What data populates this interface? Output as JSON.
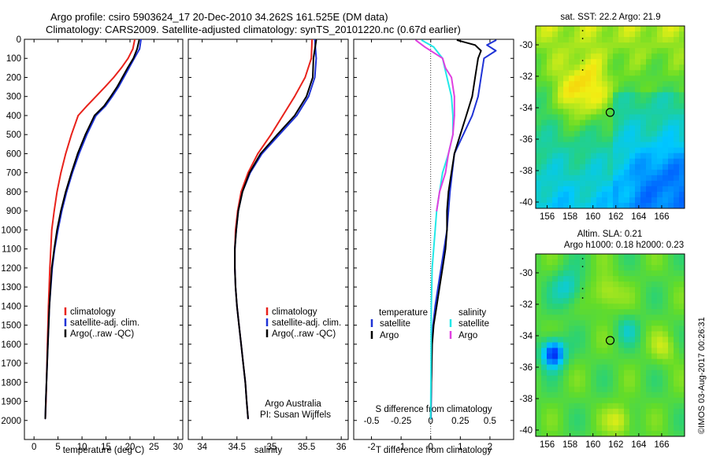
{
  "header": {
    "line1": "Argo profile: csiro 5903624_17 20-Dec-2010 34.262S 161.525E (DM data)",
    "line2": "Climatology: CARS2009. Satellite-adjusted climatology: synTS_20101220.nc (0.67d earlier)"
  },
  "colors": {
    "climatology": "#e8221b",
    "satellite": "#1f33d6",
    "argo": "#000000",
    "salinity_satellite": "#22e8e8",
    "salinity_argo": "#e040e0"
  },
  "chart_data": [
    {
      "id": "temperature",
      "type": "line",
      "xlabel": "temperature (deg C)",
      "ylabel": "",
      "xlim": [
        -2,
        31
      ],
      "ylim": [
        2100,
        0
      ],
      "xticks": [
        0,
        5,
        10,
        15,
        20,
        25,
        30
      ],
      "yticks": [
        0,
        100,
        200,
        300,
        400,
        500,
        600,
        700,
        800,
        900,
        1000,
        1100,
        1200,
        1300,
        1400,
        1500,
        1600,
        1700,
        1800,
        1900,
        2000
      ],
      "legend": [
        "climatology",
        "satellite-adj. clim.",
        "Argo(..raw -QC)"
      ],
      "legend_position": "lower-right",
      "series": [
        {
          "name": "climatology",
          "color": "#e8221b",
          "x": [
            21.0,
            20.6,
            19.6,
            18.2,
            16.6,
            14.8,
            12.9,
            11.0,
            9.2,
            7.8,
            6.6,
            5.6,
            4.8,
            4.2,
            3.7,
            3.3,
            3.0,
            2.8,
            2.6,
            2.5,
            2.35
          ],
          "y": [
            0,
            50,
            100,
            150,
            200,
            250,
            300,
            350,
            400,
            500,
            600,
            700,
            800,
            900,
            1000,
            1200,
            1400,
            1600,
            1800,
            1900,
            1990
          ]
        },
        {
          "name": "satellite-adj. clim.",
          "color": "#1f33d6",
          "x": [
            22.3,
            22.0,
            20.9,
            19.8,
            18.7,
            17.6,
            16.3,
            14.9,
            12.9,
            11.0,
            9.4,
            8.0,
            6.8,
            5.8,
            5.0,
            4.3,
            3.8,
            3.2,
            2.9,
            2.6,
            2.45,
            2.35
          ],
          "y": [
            0,
            50,
            100,
            150,
            200,
            250,
            300,
            350,
            400,
            500,
            600,
            700,
            800,
            900,
            1000,
            1100,
            1200,
            1400,
            1600,
            1800,
            1900,
            1990
          ]
        },
        {
          "name": "Argo(..raw -QC)",
          "color": "#000000",
          "x": [
            21.9,
            21.5,
            20.7,
            19.5,
            18.4,
            17.3,
            16.0,
            14.6,
            12.6,
            10.7,
            9.1,
            7.8,
            6.6,
            5.6,
            4.8,
            4.2,
            3.7,
            3.2,
            2.9,
            2.6,
            2.45,
            2.35
          ],
          "y": [
            5,
            50,
            100,
            150,
            200,
            250,
            300,
            350,
            400,
            500,
            600,
            700,
            800,
            900,
            1000,
            1100,
            1200,
            1400,
            1600,
            1800,
            1900,
            1990
          ]
        }
      ]
    },
    {
      "id": "salinity",
      "type": "line",
      "xlabel": "salinity",
      "ylabel": "",
      "xlim": [
        33.8,
        36.1
      ],
      "ylim": [
        2100,
        0
      ],
      "xticks": [
        34,
        34.5,
        35,
        35.5,
        36
      ],
      "legend": [
        "climatology",
        "satellite-adj. clim.",
        "Argo(..raw -QC)"
      ],
      "legend_position": "lower-right",
      "annotation": [
        "Argo Australia",
        "PI: Susan Wijffels"
      ],
      "series": [
        {
          "name": "climatology",
          "color": "#e8221b",
          "x": [
            35.58,
            35.57,
            35.48,
            35.33,
            35.16,
            34.99,
            34.8,
            34.66,
            34.56,
            34.51,
            34.48,
            34.47,
            34.47,
            34.48,
            34.5,
            34.53,
            34.56,
            34.59,
            34.62,
            34.64,
            34.66
          ],
          "y": [
            0,
            100,
            200,
            300,
            400,
            500,
            600,
            700,
            800,
            900,
            1000,
            1100,
            1200,
            1300,
            1400,
            1500,
            1600,
            1700,
            1800,
            1900,
            1990
          ]
        },
        {
          "name": "satellite-adj. clim.",
          "color": "#1f33d6",
          "x": [
            35.62,
            35.64,
            35.62,
            35.53,
            35.36,
            35.11,
            34.86,
            34.69,
            34.58,
            34.52,
            34.49,
            34.47,
            34.47,
            34.48,
            34.5,
            34.53,
            34.56,
            34.59,
            34.62,
            34.64,
            34.66
          ],
          "y": [
            0,
            100,
            200,
            300,
            400,
            500,
            600,
            700,
            800,
            900,
            1000,
            1100,
            1200,
            1300,
            1400,
            1500,
            1600,
            1700,
            1800,
            1900,
            1990
          ]
        },
        {
          "name": "Argo(..raw -QC)",
          "color": "#000000",
          "x": [
            35.64,
            35.6,
            35.59,
            35.5,
            35.33,
            35.08,
            34.84,
            34.68,
            34.58,
            34.52,
            34.49,
            34.47,
            34.47,
            34.48,
            34.5,
            34.53,
            34.56,
            34.59,
            34.62,
            34.64,
            34.66
          ],
          "y": [
            5,
            100,
            200,
            300,
            400,
            500,
            600,
            700,
            800,
            900,
            1000,
            1100,
            1200,
            1300,
            1400,
            1500,
            1600,
            1700,
            1800,
            1900,
            1990
          ]
        }
      ]
    },
    {
      "id": "difference",
      "type": "line",
      "xlabel": "T difference from climatology",
      "xlabel_top": "S difference from climatology",
      "xlim": [
        -2.6,
        2.8
      ],
      "ylim": [
        2100,
        0
      ],
      "xticks": [
        -2,
        -1,
        0,
        1,
        2
      ],
      "xticks_top_labels": [
        "-0.5",
        "-0.25",
        "0",
        "0.25",
        "0.5"
      ],
      "xticks_top_values": [
        -2,
        -1,
        0,
        1,
        2
      ],
      "legend_left_title": "temperature",
      "legend_right_title": "salinity",
      "legend": [
        "satellite",
        "Argo",
        "satellite",
        "Argo"
      ],
      "legend_position": "lower",
      "series": [
        {
          "name": "satellite",
          "color": "#1f33d6",
          "x": [
            2.2,
            1.9,
            2.2,
            1.8,
            1.7,
            1.6,
            1.4,
            1.1,
            0.8,
            0.65,
            0.6,
            0.55,
            0.45,
            0.35,
            0.25,
            0.15,
            0.08,
            0.04,
            0.02,
            0.01
          ],
          "y": [
            5,
            30,
            60,
            100,
            200,
            300,
            400,
            500,
            600,
            800,
            900,
            1000,
            1100,
            1200,
            1300,
            1400,
            1500,
            1600,
            1800,
            1990
          ]
        },
        {
          "name": "Argo",
          "color": "#000000",
          "x": [
            0.9,
            1.5,
            1.7,
            1.6,
            1.5,
            1.4,
            1.2,
            1.0,
            0.8,
            0.6,
            0.55,
            0.55,
            0.5,
            0.4,
            0.3,
            0.2,
            0.1,
            0.05,
            0.02,
            0.0
          ],
          "y": [
            5,
            30,
            60,
            100,
            200,
            300,
            400,
            500,
            600,
            800,
            900,
            1000,
            1100,
            1200,
            1300,
            1400,
            1500,
            1600,
            1800,
            1990
          ]
        },
        {
          "name": "satellite",
          "color": "#22e8e8",
          "x": [
            -0.3,
            0.1,
            0.4,
            0.55,
            0.7,
            0.75,
            0.75,
            0.6,
            0.4,
            0.3,
            0.2,
            0.15,
            0.1,
            0.05,
            0.02,
            0.0
          ],
          "y": [
            5,
            40,
            100,
            200,
            300,
            400,
            500,
            600,
            700,
            800,
            900,
            1000,
            1100,
            1200,
            1400,
            1990
          ]
        },
        {
          "name": "Argo",
          "color": "#e040e0",
          "x": [
            -0.5,
            -0.2,
            0.4,
            0.5,
            0.7,
            0.8,
            0.8,
            0.75,
            0.6,
            0.5,
            0.3,
            0.2
          ],
          "y": [
            5,
            40,
            100,
            150,
            200,
            300,
            400,
            500,
            600,
            700,
            800,
            900
          ]
        }
      ]
    },
    {
      "id": "sst_map",
      "type": "heatmap",
      "title": "sat. SST: 22.2 Argo: 21.9",
      "xlim": [
        155,
        168
      ],
      "ylim": [
        -40.4,
        -28.8
      ],
      "xticks": [
        156,
        158,
        160,
        162,
        164,
        166
      ],
      "yticks": [
        -30,
        -32,
        -34,
        -36,
        -38,
        -40
      ],
      "marker": {
        "lon": 161.5,
        "lat": -34.3
      }
    },
    {
      "id": "sla_map",
      "type": "heatmap",
      "title": "Altim. SLA: 0.21",
      "subtitle": "Argo h1000: 0.18 h2000: 0.23",
      "xlim": [
        155,
        168
      ],
      "ylim": [
        -40.4,
        -28.8
      ],
      "xticks": [
        156,
        158,
        160,
        162,
        164,
        166
      ],
      "yticks": [
        -30,
        -32,
        -34,
        -36,
        -38,
        -40
      ],
      "marker": {
        "lon": 161.5,
        "lat": -34.3
      }
    }
  ],
  "footer": {
    "credit": "©IMOS 03-Aug-2017 00:26:31"
  }
}
